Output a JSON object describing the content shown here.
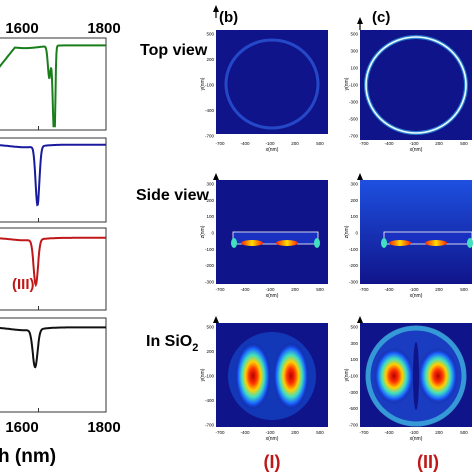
{
  "chart_data": {
    "type": "line",
    "spectra": {
      "x_axis": {
        "label_visible": "h (nm)",
        "tick_labels": [
          "1600",
          "1800"
        ],
        "xlim": [
          1480,
          1800
        ]
      },
      "panels": [
        {
          "color": "#1a7f1a",
          "baseline": 0.92,
          "dips": [
            {
              "x": 1632,
              "depth": 0.35,
              "width": 6
            },
            {
              "x": 1645,
              "depth": 0.8,
              "width": 5
            },
            {
              "x": 1648,
              "depth": 0.55,
              "width": 3
            }
          ]
        },
        {
          "color": "#1a1aa0",
          "baseline": 0.92,
          "dips": [
            {
              "x": 1597,
              "depth": 0.7,
              "width": 8
            }
          ]
        },
        {
          "color": "#c01818",
          "baseline": 0.88,
          "dips": [
            {
              "x": 1592,
              "depth": 0.55,
              "width": 9
            }
          ],
          "label": "(III)"
        },
        {
          "color": "#111111",
          "baseline": 0.9,
          "dips": [
            {
              "x": 1590,
              "depth": 0.4,
              "width": 10
            }
          ]
        }
      ]
    },
    "maps": {
      "panel_labels": [
        "(b)",
        "(c)"
      ],
      "row_labels": [
        "Top view",
        "Side view",
        "In SiO"
      ],
      "row_label_subscript": "2",
      "bottom_labels": [
        "(I)",
        "(II)"
      ],
      "x_label": "x(nm)",
      "y_label": "y(nm)",
      "z_label": "z(nm)",
      "x_ticks": [
        "-700",
        "-400",
        "-100",
        "200",
        "500"
      ],
      "y_ticks_b": [
        "500",
        "200",
        "-100",
        "-400",
        "-700"
      ],
      "y_ticks_c": [
        "500",
        "300",
        "100",
        "-100",
        "-300",
        "-500",
        "-700"
      ],
      "z_ticks": [
        "300",
        "200",
        "100",
        "0",
        "-100",
        "-200",
        "-300"
      ]
    }
  },
  "colors": {
    "green": "#1a7f1a",
    "blue": "#1a1aa0",
    "red": "#c01818",
    "black": "#111111",
    "map_bg": "#10148a",
    "label_red": "#c01818"
  }
}
